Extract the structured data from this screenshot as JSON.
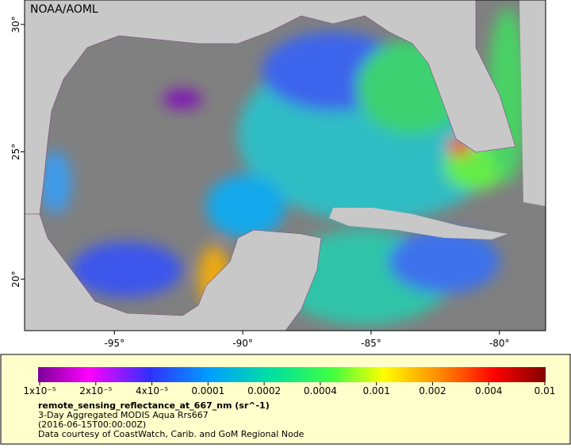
{
  "map": {
    "label": "NOAA/AOML",
    "xlim": [
      -98.5,
      -78.2
    ],
    "ylim": [
      17.98,
      30.96
    ],
    "lon_ticks": [
      {
        "value": -95,
        "label": "-95°"
      },
      {
        "value": -90,
        "label": "-90°"
      },
      {
        "value": -85,
        "label": "-85°"
      },
      {
        "value": -80,
        "label": "-80°"
      }
    ],
    "lat_ticks": [
      {
        "value": 30,
        "label": "30°"
      },
      {
        "value": 25,
        "label": "25°"
      },
      {
        "value": 20,
        "label": "20°"
      }
    ]
  },
  "colorbar": {
    "labels": [
      "1x10⁻⁵",
      "2x10⁻⁵",
      "4x10⁻⁵",
      "0.0001",
      "0.0002",
      "0.0004",
      "0.001",
      "0.002",
      "0.004",
      "0.01"
    ]
  },
  "caption": {
    "title": "remote_sensing_reflectance_at_667_nm (sr^-1)",
    "lines": [
      "3-Day Aggregated MODIS Aqua Rrs667",
      "(2016-06-15T00:00:00Z)",
      "Data courtesy of CoastWatch, Carib. and GoM Regional Node"
    ]
  }
}
